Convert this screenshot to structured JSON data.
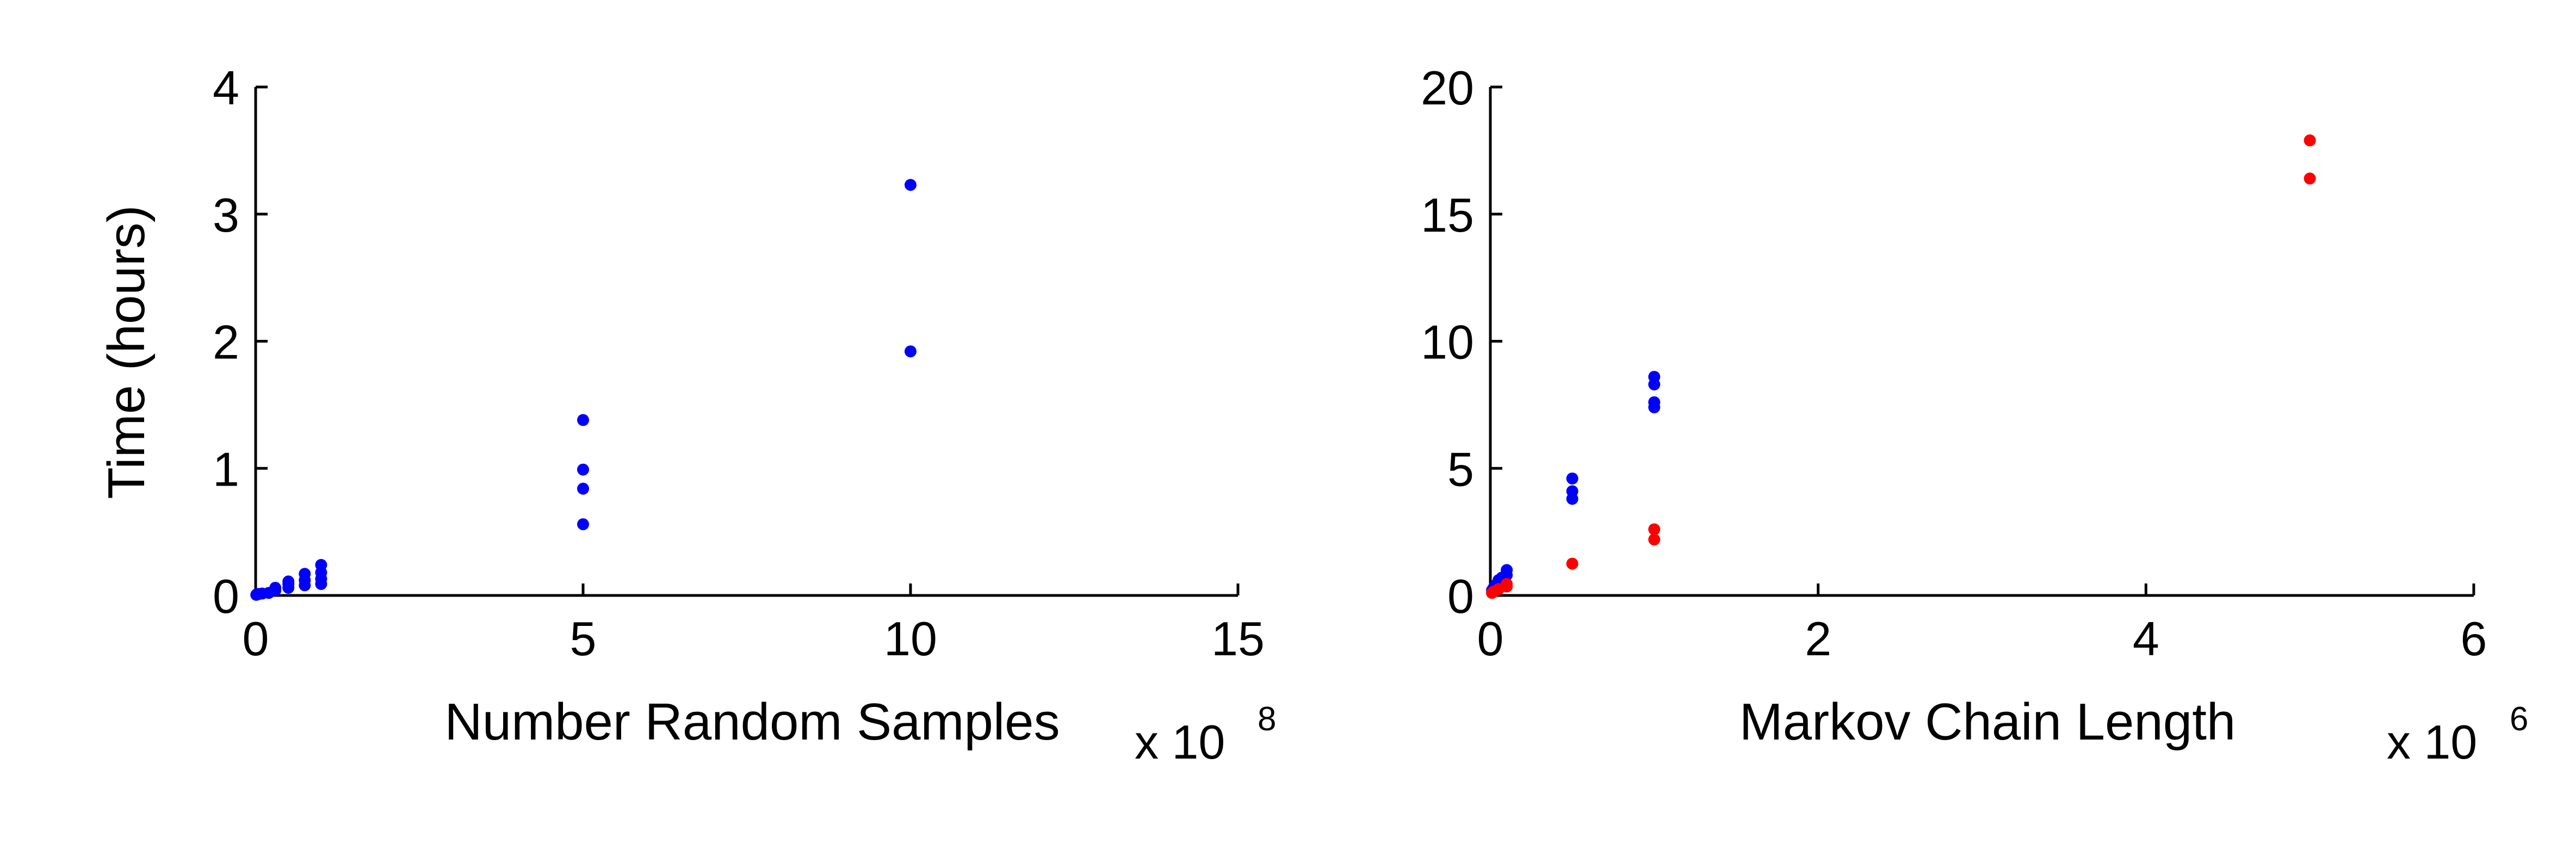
{
  "chart_data": [
    {
      "type": "scatter",
      "title": "",
      "xlabel": "Number Random Samples",
      "ylabel": "Time (hours)",
      "x_multiplier": {
        "base": "x 10",
        "exponent": "8"
      },
      "xlim": [
        0,
        15
      ],
      "ylim": [
        0,
        4
      ],
      "xticks": [
        "0",
        "5",
        "10",
        "15"
      ],
      "yticks": [
        "0",
        "1",
        "2",
        "3",
        "4"
      ],
      "grid": false,
      "series": [
        {
          "color": "#0000ff",
          "points": [
            [
              0.01,
              0.005
            ],
            [
              0.02,
              0.01
            ],
            [
              0.05,
              0.012
            ],
            [
              0.1,
              0.015
            ],
            [
              0.2,
              0.02
            ],
            [
              0.3,
              0.04
            ],
            [
              0.3,
              0.06
            ],
            [
              0.5,
              0.06
            ],
            [
              0.5,
              0.09
            ],
            [
              0.5,
              0.11
            ],
            [
              0.75,
              0.08
            ],
            [
              0.75,
              0.12
            ],
            [
              0.75,
              0.17
            ],
            [
              1.0,
              0.09
            ],
            [
              1.0,
              0.13
            ],
            [
              1.0,
              0.18
            ],
            [
              1.0,
              0.24
            ],
            [
              5,
              0.56
            ],
            [
              5,
              0.84
            ],
            [
              5,
              0.99
            ],
            [
              5,
              1.38
            ],
            [
              10,
              1.92
            ],
            [
              10,
              3.23
            ]
          ]
        }
      ]
    },
    {
      "type": "scatter",
      "title": "",
      "xlabel": "Markov Chain Length",
      "ylabel": "",
      "x_multiplier": {
        "base": "x 10",
        "exponent": "6"
      },
      "xlim": [
        0,
        6
      ],
      "ylim": [
        0,
        20
      ],
      "xticks": [
        "0",
        "2",
        "4",
        "6"
      ],
      "yticks": [
        "0",
        "5",
        "10",
        "15",
        "20"
      ],
      "grid": false,
      "series": [
        {
          "color": "#0000ff",
          "points": [
            [
              0.01,
              0.2
            ],
            [
              0.02,
              0.3
            ],
            [
              0.03,
              0.4
            ],
            [
              0.05,
              0.5
            ],
            [
              0.05,
              0.6
            ],
            [
              0.07,
              0.7
            ],
            [
              0.1,
              0.8
            ],
            [
              0.1,
              1.0
            ],
            [
              0.5,
              3.8
            ],
            [
              0.5,
              4.1
            ],
            [
              0.5,
              4.6
            ],
            [
              1.0,
              7.4
            ],
            [
              1.0,
              7.6
            ],
            [
              1.0,
              8.3
            ],
            [
              1.0,
              8.6
            ]
          ]
        },
        {
          "color": "#ff0000",
          "points": [
            [
              0.01,
              0.1
            ],
            [
              0.02,
              0.15
            ],
            [
              0.05,
              0.25
            ],
            [
              0.1,
              0.35
            ],
            [
              0.1,
              0.45
            ],
            [
              0.5,
              1.25
            ],
            [
              1.0,
              2.2
            ],
            [
              1.0,
              2.6
            ],
            [
              5.0,
              16.4
            ],
            [
              5.0,
              17.9
            ]
          ]
        }
      ]
    }
  ]
}
